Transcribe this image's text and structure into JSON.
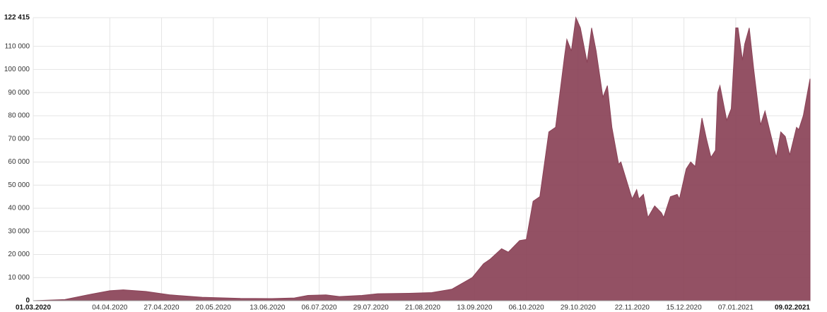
{
  "chart_data": {
    "type": "area",
    "color": "#8a4257",
    "grid": true,
    "xlim": [
      "01.03.2020",
      "09.02.2021"
    ],
    "xticks": [
      "01.03.2020",
      "04.04.2020",
      "27.04.2020",
      "20.05.2020",
      "13.06.2020",
      "06.07.2020",
      "29.07.2020",
      "21.08.2020",
      "13.09.2020",
      "06.10.2020",
      "29.10.2020",
      "22.11.2020",
      "15.12.2020",
      "07.01.2021",
      "09.02.2021"
    ],
    "ylim": [
      0,
      122415
    ],
    "yticks": [
      0,
      {
        "value": 10000,
        "label": "10 000"
      },
      {
        "value": 20000,
        "label": "20 000"
      },
      {
        "value": 30000,
        "label": "30 000"
      },
      {
        "value": 40000,
        "label": "40 000"
      },
      {
        "value": 50000,
        "label": "50 000"
      },
      {
        "value": 60000,
        "label": "60 000"
      },
      {
        "value": 70000,
        "label": "70 000"
      },
      {
        "value": 80000,
        "label": "80 000"
      },
      {
        "value": 90000,
        "label": "90 000"
      },
      {
        "value": 100000,
        "label": "100 000"
      },
      {
        "value": 110000,
        "label": "110 000"
      },
      {
        "value": 122415,
        "label": "122 415"
      }
    ],
    "x": [
      "01.03.2020",
      "15.03.2020",
      "25.03.2020",
      "04.04.2020",
      "10.04.2020",
      "20.04.2020",
      "01.05.2020",
      "15.05.2020",
      "01.06.2020",
      "15.06.2020",
      "25.06.2020",
      "01.07.2020",
      "09.07.2020",
      "15.07.2020",
      "25.07.2020",
      "01.08.2020",
      "15.08.2020",
      "25.08.2020",
      "03.09.2020",
      "12.09.2020",
      "17.09.2020",
      "20.09.2020",
      "25.09.2020",
      "28.09.2020",
      "03.10.2020",
      "06.10.2020",
      "09.10.2020",
      "12.10.2020",
      "16.10.2020",
      "19.10.2020",
      "23.10.2020",
      "24.10.2020",
      "26.10.2020",
      "28.10.2020",
      "30.10.2020",
      "02.11.2020",
      "04.11.2020",
      "06.11.2020",
      "09.11.2020",
      "11.11.2020",
      "13.11.2020",
      "16.11.2020",
      "17.11.2020",
      "22.11.2020",
      "24.11.2020",
      "25.11.2020",
      "27.11.2020",
      "29.11.2020",
      "02.12.2020",
      "05.12.2020",
      "06.12.2020",
      "09.12.2020",
      "12.12.2020",
      "13.12.2020",
      "16.12.2020",
      "18.12.2020",
      "20.12.2020",
      "23.12.2020",
      "25.12.2020",
      "27.12.2020",
      "29.12.2020",
      "30.12.2020",
      "31.12.2020",
      "03.01.2021",
      "05.01.2021",
      "07.01.2021",
      "08.01.2021",
      "10.01.2021",
      "11.01.2021",
      "13.01.2021",
      "15.01.2021",
      "18.01.2021",
      "20.01.2021",
      "22.01.2021",
      "25.01.2021",
      "27.01.2021",
      "29.01.2021",
      "31.01.2021",
      "03.02.2021",
      "04.02.2021",
      "06.02.2021",
      "09.02.2021"
    ],
    "values": [
      0,
      500,
      2500,
      4300,
      4700,
      4000,
      2500,
      1500,
      1000,
      900,
      1200,
      2300,
      2500,
      1800,
      2300,
      3000,
      3200,
      3500,
      5000,
      10000,
      16000,
      18000,
      22500,
      21000,
      26000,
      26500,
      43000,
      45000,
      73000,
      75000,
      106000,
      113000,
      108000,
      122415,
      118000,
      103000,
      118000,
      108000,
      88000,
      93000,
      75000,
      59000,
      60000,
      44000,
      48000,
      44000,
      46000,
      36000,
      41000,
      38000,
      36000,
      45000,
      46000,
      44000,
      57000,
      60000,
      58000,
      79000,
      70000,
      62000,
      65000,
      90000,
      93000,
      78000,
      83000,
      118000,
      118000,
      104000,
      111000,
      118000,
      100000,
      76000,
      82000,
      74000,
      62000,
      73000,
      71000,
      63000,
      75000,
      74000,
      80000,
      96000
    ]
  }
}
